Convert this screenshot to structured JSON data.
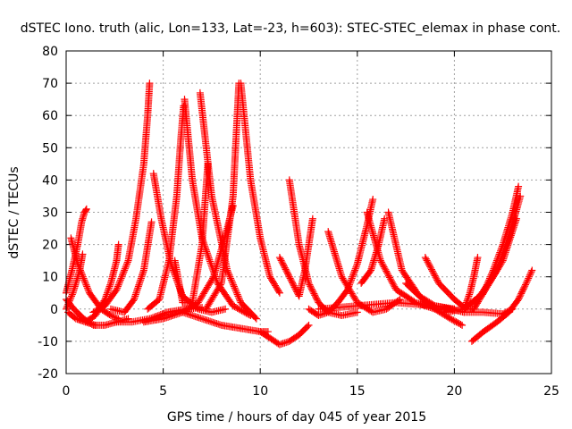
{
  "chart_data": {
    "type": "scatter",
    "title": "dSTEC Iono. truth (alic, Lon=133, Lat=-23, h=603): STEC-STEC_elemax in phase cont.",
    "xlabel": "GPS time / hours of day 045 of year 2015",
    "ylabel": "dSTEC  / TECUs",
    "xlim": [
      0,
      25
    ],
    "ylim": [
      -20,
      80
    ],
    "x_ticks": [
      0,
      5,
      10,
      15,
      20,
      25
    ],
    "y_ticks": [
      -20,
      -10,
      0,
      10,
      20,
      30,
      40,
      50,
      60,
      70,
      80
    ],
    "grid": true,
    "marker": "plus",
    "color": "#ff0000",
    "series": [
      {
        "x": [
          0.0,
          0.3,
          0.6,
          0.8,
          0.95,
          1.05
        ],
        "y": [
          5,
          12,
          20,
          27,
          30,
          31
        ]
      },
      {
        "x": [
          0.25,
          0.6,
          1.2,
          1.8,
          2.3,
          2.7
        ],
        "y": [
          22,
          14,
          5,
          0,
          -2,
          -3
        ]
      },
      {
        "x": [
          0.0,
          0.4,
          0.9,
          1.4,
          2.0,
          2.6,
          3.2
        ],
        "y": [
          3,
          0,
          -3,
          -5,
          -5,
          -4,
          -3
        ]
      },
      {
        "x": [
          0.0,
          0.35,
          0.7,
          0.85
        ],
        "y": [
          0,
          5,
          12,
          17
        ]
      },
      {
        "x": [
          0.6,
          1.0,
          1.5,
          2.0,
          2.3,
          2.6,
          2.7
        ],
        "y": [
          -3,
          -4,
          -2,
          3,
          8,
          15,
          20
        ]
      },
      {
        "x": [
          1.4,
          2.0,
          2.6,
          3.2,
          3.6,
          4.0,
          4.2,
          4.3
        ],
        "y": [
          -1,
          1,
          6,
          15,
          28,
          45,
          60,
          70
        ]
      },
      {
        "x": [
          2.6,
          3.4,
          4.3,
          5.2,
          6.2,
          7.0
        ],
        "y": [
          -4,
          -4,
          -3,
          -1,
          0,
          0.5
        ]
      },
      {
        "x": [
          2.3,
          3.0,
          3.5,
          4.0,
          4.4
        ],
        "y": [
          0,
          -1,
          3,
          12,
          27
        ]
      },
      {
        "x": [
          4.5,
          4.9,
          5.4,
          6.0,
          6.8,
          7.5,
          8.2
        ],
        "y": [
          42,
          28,
          14,
          4,
          0,
          -1,
          0
        ]
      },
      {
        "x": [
          4.2,
          4.8,
          5.3,
          5.7,
          5.9,
          6.05
        ],
        "y": [
          0,
          3,
          15,
          35,
          52,
          63
        ]
      },
      {
        "x": [
          6.1,
          6.5,
          7.0,
          7.8,
          8.6,
          9.5
        ],
        "y": [
          65,
          40,
          22,
          8,
          1,
          -2
        ]
      },
      {
        "x": [
          5.6,
          6.0,
          6.5,
          7.0,
          7.3
        ],
        "y": [
          15,
          2,
          2,
          20,
          45
        ]
      },
      {
        "x": [
          6.9,
          7.5,
          8.3,
          9.0,
          9.8
        ],
        "y": [
          67,
          35,
          12,
          2,
          -3
        ]
      },
      {
        "x": [
          8.6,
          8.3,
          7.6,
          6.8,
          6.0,
          5.0,
          4.0
        ],
        "y": [
          32,
          25,
          10,
          2,
          -1,
          -3,
          -4
        ]
      },
      {
        "x": [
          7.2,
          8.0,
          8.6,
          8.9
        ],
        "y": [
          0,
          8,
          35,
          70
        ]
      },
      {
        "x": [
          9.0,
          9.5,
          10.0,
          10.5,
          11.0
        ],
        "y": [
          70,
          40,
          22,
          10,
          5
        ]
      },
      {
        "x": [
          6.0,
          7.0,
          8.0,
          9.0,
          10.0,
          10.4
        ],
        "y": [
          -1,
          -3,
          -5,
          -6,
          -7,
          -7
        ]
      },
      {
        "x": [
          10.0,
          10.5,
          11.0,
          11.5,
          12.0,
          12.5
        ],
        "y": [
          -7,
          -9,
          -11,
          -10,
          -8,
          -5
        ]
      },
      {
        "x": [
          11.5,
          12.0,
          12.5,
          13.0,
          13.5,
          14.2,
          15.0
        ],
        "y": [
          40,
          20,
          8,
          2,
          -1,
          -2,
          -1
        ]
      },
      {
        "x": [
          11.0,
          11.5,
          12.0,
          12.3,
          12.7
        ],
        "y": [
          16,
          10,
          4,
          12,
          28
        ]
      },
      {
        "x": [
          12.5,
          13.0,
          13.5,
          14.0,
          14.5,
          15.0,
          15.5,
          15.8
        ],
        "y": [
          0,
          -2,
          -1,
          2,
          6,
          14,
          26,
          34
        ]
      },
      {
        "x": [
          13.5,
          14.2,
          15.0,
          15.8,
          16.5,
          17.2
        ],
        "y": [
          24,
          10,
          2,
          -1,
          0,
          3
        ]
      },
      {
        "x": [
          15.5,
          16.2,
          17.0,
          18.0,
          19.0,
          20.0
        ],
        "y": [
          30,
          15,
          6,
          2,
          0,
          0
        ]
      },
      {
        "x": [
          15.2,
          15.7,
          16.1,
          16.4
        ],
        "y": [
          8,
          12,
          20,
          28
        ]
      },
      {
        "x": [
          16.6,
          17.3,
          18.2,
          19.0,
          19.8,
          20.4
        ],
        "y": [
          30,
          12,
          4,
          0,
          -3,
          -5
        ]
      },
      {
        "x": [
          17.5,
          18.2,
          19.0,
          19.8,
          20.5
        ],
        "y": [
          8,
          4,
          1,
          0,
          -1
        ]
      },
      {
        "x": [
          18.5,
          19.2,
          20.0,
          20.6,
          21.0
        ],
        "y": [
          16,
          8,
          3,
          0,
          0
        ]
      },
      {
        "x": [
          13.0,
          15.0,
          17.0,
          19.0,
          20.0
        ],
        "y": [
          0,
          1,
          2,
          1,
          0
        ]
      },
      {
        "x": [
          20.5,
          20.8,
          21.0,
          21.2
        ],
        "y": [
          0,
          5,
          10,
          16
        ]
      },
      {
        "x": [
          21.0,
          21.5,
          22.0,
          22.5,
          23.0,
          23.3
        ],
        "y": [
          0,
          5,
          12,
          20,
          30,
          38
        ]
      },
      {
        "x": [
          20.5,
          21.3,
          22.1,
          22.8,
          23.4
        ],
        "y": [
          0,
          4,
          11,
          22,
          35
        ]
      },
      {
        "x": [
          19.5,
          20.5,
          21.5,
          22.5,
          23.2
        ],
        "y": [
          -1,
          0,
          5,
          15,
          28
        ]
      },
      {
        "x": [
          20.9,
          21.5,
          22.2,
          22.8,
          23.3,
          23.7,
          24.0
        ],
        "y": [
          -10,
          -7,
          -4,
          -1,
          3,
          8,
          12
        ]
      },
      {
        "x": [
          20.5,
          21.5,
          22.5,
          23.0
        ],
        "y": [
          -1,
          -1,
          -1.5,
          0
        ]
      },
      {
        "x": [
          0.1,
          0.5,
          1.0,
          1.5
        ],
        "y": [
          -1,
          -3,
          -4,
          -5
        ]
      }
    ]
  }
}
